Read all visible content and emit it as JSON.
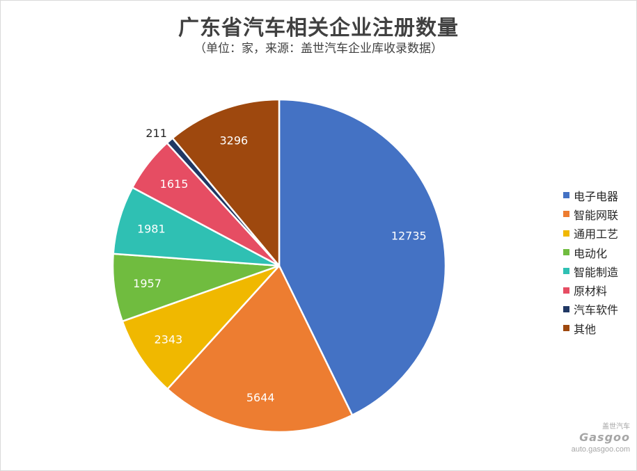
{
  "chart_data": {
    "type": "pie",
    "title": "广东省汽车相关企业注册数量",
    "subtitle": "（单位：家，来源：盖世汽车企业库收录数据）",
    "categories": [
      "电子电器",
      "智能网联",
      "通用工艺",
      "电动化",
      "智能制造",
      "原材料",
      "汽车软件",
      "其他"
    ],
    "values": [
      12735,
      5644,
      2343,
      1957,
      1981,
      1615,
      211,
      3296
    ],
    "colors": [
      "#4472C4",
      "#ED7D31",
      "#F0B800",
      "#70BC3F",
      "#2FC0B3",
      "#E64D63",
      "#203864",
      "#9E480E"
    ],
    "legend_position": "right"
  },
  "watermark": {
    "logo": "Gasgoo",
    "cn": "盖世汽车",
    "url": "auto.gasgoo.com"
  }
}
